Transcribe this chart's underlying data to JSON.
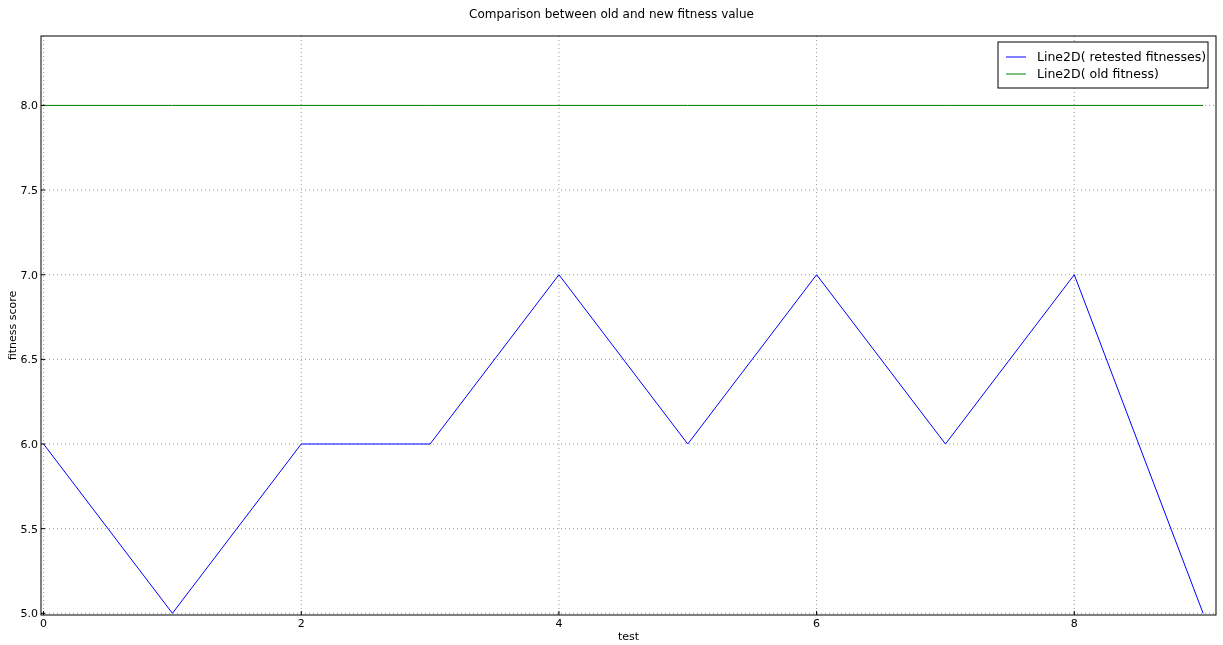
{
  "chart_data": {
    "type": "line",
    "title": "Comparison between old and new fitness value",
    "xlabel": "test",
    "ylabel": "fitness score",
    "x": [
      0,
      1,
      2,
      3,
      4,
      5,
      6,
      7,
      8,
      9
    ],
    "series": [
      {
        "name": "Line2D( retested fitnesses)",
        "color": "#0000ff",
        "values": [
          6,
          5,
          6,
          6,
          7,
          6,
          7,
          6,
          7,
          5
        ]
      },
      {
        "name": "Line2D( old fitness)",
        "color": "#008000",
        "values": [
          8,
          8,
          8,
          8,
          8,
          8,
          8,
          8,
          8,
          8
        ]
      }
    ],
    "xlim": [
      -0.02,
      9.1
    ],
    "ylim": [
      4.99,
      8.41
    ],
    "xticks": [
      0,
      2,
      4,
      6,
      8
    ],
    "yticks": [
      {
        "value": 5,
        "label": "5.0"
      },
      {
        "value": 5.5,
        "label": "5.5"
      },
      {
        "value": 6,
        "label": "6.0"
      },
      {
        "value": 6.5,
        "label": "6.5"
      },
      {
        "value": 7,
        "label": "7.0"
      },
      {
        "value": 7.5,
        "label": "7.5"
      },
      {
        "value": 8,
        "label": "8.0"
      }
    ],
    "grid": true,
    "legend": "top right",
    "marker": "none",
    "line_style": "solid"
  }
}
